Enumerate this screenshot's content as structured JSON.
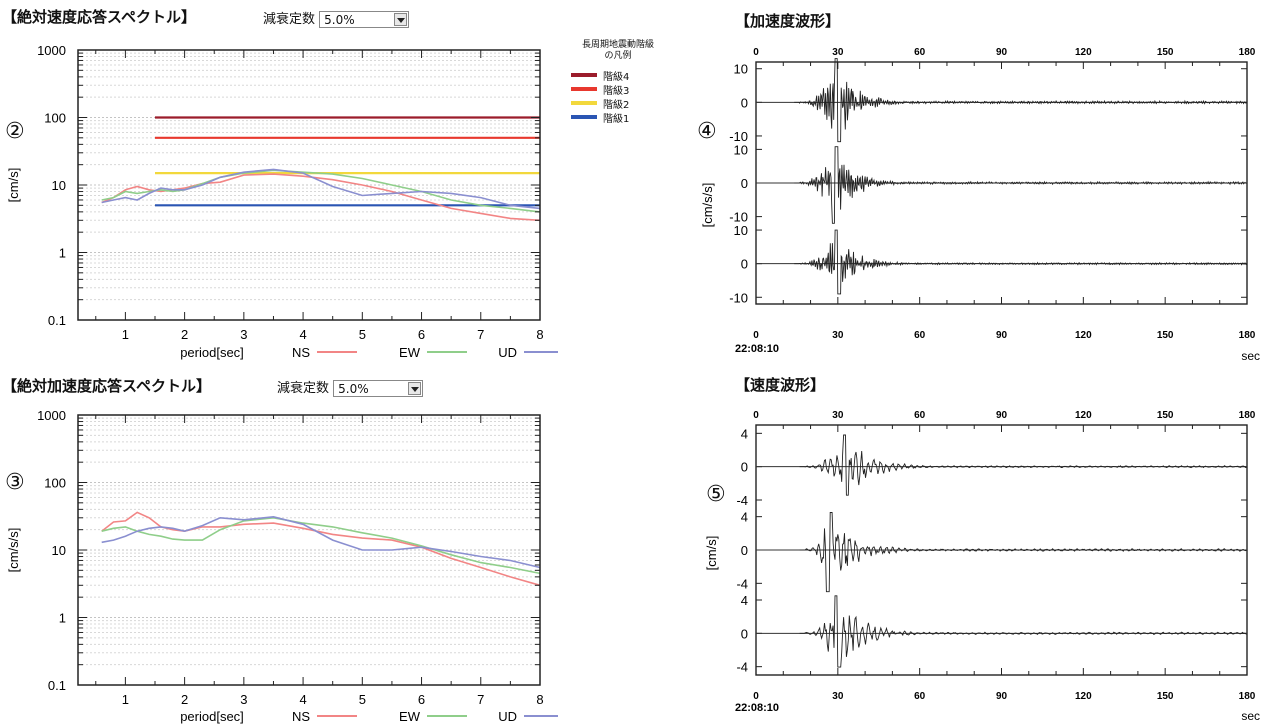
{
  "panels": {
    "vel_spec": {
      "title": "【絶対速度応答スペクトル】",
      "damping_label": "減衰定数",
      "damping_value": "5.0%",
      "marker": "②",
      "ylabel": "[cm/s]",
      "xlabel": "period[sec]"
    },
    "acc_spec": {
      "title": "【絶対加速度応答スペクトル】",
      "damping_label": "減衰定数",
      "damping_value": "5.0%",
      "marker": "③",
      "ylabel": "[cm/s/s]",
      "xlabel": "period[sec]"
    },
    "acc_wave": {
      "title": "【加速度波形】",
      "marker": "④",
      "ylabel": "[cm/s/s]",
      "time_label": "22:08:10",
      "unit": "sec"
    },
    "vel_wave": {
      "title": "【速度波形】",
      "marker": "⑤",
      "ylabel": "[cm/s]",
      "time_label": "22:08:10",
      "unit": "sec"
    }
  },
  "legend": {
    "title_line1": "長周期地震動階級",
    "title_line2": "の凡例",
    "items": [
      {
        "label": "階級4",
        "color": "#9b1c2b"
      },
      {
        "label": "階級3",
        "color": "#e8382e"
      },
      {
        "label": "階級2",
        "color": "#f2d83c"
      },
      {
        "label": "階級1",
        "color": "#2a55b3"
      }
    ]
  },
  "series_legend": [
    {
      "label": "NS",
      "color": "#f28585"
    },
    {
      "label": "EW",
      "color": "#8fce8a"
    },
    {
      "label": "UD",
      "color": "#8a8fd0"
    }
  ],
  "chart_data": [
    {
      "id": "vel_spec",
      "type": "line",
      "yscale": "log",
      "xlim": [
        0.2,
        8
      ],
      "ylim": [
        0.1,
        1000
      ],
      "xticks": [
        "1",
        "2",
        "3",
        "4",
        "5",
        "6",
        "7",
        "8"
      ],
      "yticks": [
        "0.1",
        "1",
        "10",
        "100",
        "1000"
      ],
      "thresholds": [
        {
          "value": 100,
          "color": "#9b1c2b",
          "x": [
            1.5,
            8
          ]
        },
        {
          "value": 50,
          "color": "#e8382e",
          "x": [
            1.5,
            8
          ]
        },
        {
          "value": 15,
          "color": "#f2d83c",
          "x": [
            1.5,
            8
          ]
        },
        {
          "value": 5,
          "color": "#2a55b3",
          "x": [
            1.5,
            8
          ]
        }
      ],
      "series": [
        {
          "name": "NS",
          "color": "#f28585",
          "x": [
            0.6,
            0.8,
            1.0,
            1.2,
            1.4,
            1.6,
            1.8,
            2.0,
            2.3,
            2.6,
            3.0,
            3.5,
            4.0,
            4.5,
            5.0,
            5.5,
            6.0,
            6.5,
            7.0,
            7.5,
            8.0
          ],
          "y": [
            5.5,
            6.5,
            8.5,
            9.5,
            8.5,
            8.0,
            8.5,
            9.0,
            10.5,
            11.0,
            14.0,
            14.5,
            13.5,
            12.0,
            10.0,
            8.0,
            6.0,
            4.5,
            3.8,
            3.2,
            3.0
          ]
        },
        {
          "name": "EW",
          "color": "#8fce8a",
          "x": [
            0.6,
            0.8,
            1.0,
            1.2,
            1.4,
            1.6,
            1.8,
            2.0,
            2.3,
            2.6,
            3.0,
            3.5,
            4.0,
            4.5,
            5.0,
            5.5,
            6.0,
            6.5,
            7.0,
            7.5,
            8.0
          ],
          "y": [
            6.0,
            6.5,
            8.0,
            7.5,
            8.0,
            8.5,
            8.0,
            8.5,
            10.5,
            13.0,
            15.0,
            16.5,
            15.5,
            14.5,
            12.5,
            10.0,
            8.0,
            6.0,
            5.0,
            4.5,
            4.0
          ]
        },
        {
          "name": "UD",
          "color": "#8a8fd0",
          "x": [
            0.6,
            0.8,
            1.0,
            1.2,
            1.4,
            1.6,
            1.8,
            2.0,
            2.3,
            2.6,
            3.0,
            3.5,
            4.0,
            4.5,
            5.0,
            5.5,
            6.0,
            6.5,
            7.0,
            7.5,
            8.0
          ],
          "y": [
            5.5,
            6.0,
            6.5,
            6.0,
            7.5,
            9.0,
            8.5,
            8.5,
            10.0,
            13.0,
            15.5,
            17.0,
            15.0,
            9.5,
            7.0,
            7.5,
            8.0,
            7.5,
            6.5,
            5.0,
            4.5
          ]
        }
      ]
    },
    {
      "id": "acc_spec",
      "type": "line",
      "yscale": "log",
      "xlim": [
        0.2,
        8
      ],
      "ylim": [
        0.1,
        1000
      ],
      "xticks": [
        "1",
        "2",
        "3",
        "4",
        "5",
        "6",
        "7",
        "8"
      ],
      "yticks": [
        "0.1",
        "1",
        "10",
        "100",
        "1000"
      ],
      "series": [
        {
          "name": "NS",
          "color": "#f28585",
          "x": [
            0.6,
            0.8,
            1.0,
            1.2,
            1.4,
            1.6,
            1.8,
            2.0,
            2.3,
            2.6,
            3.0,
            3.5,
            4.0,
            4.5,
            5.0,
            5.5,
            6.0,
            6.5,
            7.0,
            7.5,
            8.0
          ],
          "y": [
            19,
            26,
            27,
            36,
            30,
            22,
            20,
            19,
            22,
            22,
            24,
            25,
            21,
            17,
            15,
            14,
            11,
            7.5,
            5.5,
            4.0,
            3.0
          ]
        },
        {
          "name": "EW",
          "color": "#8fce8a",
          "x": [
            0.6,
            0.8,
            1.0,
            1.2,
            1.4,
            1.6,
            1.8,
            2.0,
            2.3,
            2.6,
            3.0,
            3.5,
            4.0,
            4.5,
            5.0,
            5.5,
            6.0,
            6.5,
            7.0,
            7.5,
            8.0
          ],
          "y": [
            19,
            21,
            22,
            19,
            17,
            16,
            14.5,
            14,
            14,
            20,
            27,
            30,
            25,
            22,
            18,
            15,
            11.5,
            8.5,
            6.5,
            5.5,
            4.5
          ]
        },
        {
          "name": "UD",
          "color": "#8a8fd0",
          "x": [
            0.6,
            0.8,
            1.0,
            1.2,
            1.4,
            1.6,
            1.8,
            2.0,
            2.3,
            2.6,
            3.0,
            3.5,
            4.0,
            4.5,
            5.0,
            5.5,
            6.0,
            6.5,
            7.0,
            7.5,
            8.0
          ],
          "y": [
            13,
            14,
            16,
            19,
            21,
            22,
            21,
            19,
            23,
            30,
            28,
            31,
            24,
            14,
            10,
            10,
            11,
            9.5,
            8,
            7,
            5.5
          ]
        }
      ]
    },
    {
      "id": "acc_wave",
      "type": "line",
      "xlim": [
        0,
        180
      ],
      "xticks": [
        "0",
        "30",
        "60",
        "90",
        "120",
        "150",
        "180"
      ],
      "channels": [
        {
          "yticks": [
            "10",
            "0",
            "-10"
          ],
          "ytick_values": [
            10,
            0,
            -10
          ],
          "ylim": [
            -12,
            12
          ],
          "onset": 16,
          "peak": 30,
          "amp": 13,
          "decay": 7
        },
        {
          "yticks": [
            "10",
            "0",
            "-10"
          ],
          "ytick_values": [
            10,
            0,
            -10
          ],
          "ylim": [
            -12,
            12
          ],
          "onset": 16,
          "peak": 29,
          "amp": 12,
          "decay": 7
        },
        {
          "yticks": [
            "10",
            "0",
            "-10"
          ],
          "ytick_values": [
            10,
            0,
            -10
          ],
          "ylim": [
            -12,
            12
          ],
          "onset": 16,
          "peak": 30,
          "amp": 10,
          "decay": 7
        }
      ]
    },
    {
      "id": "vel_wave",
      "type": "line",
      "xlim": [
        0,
        180
      ],
      "xticks": [
        "0",
        "30",
        "60",
        "90",
        "120",
        "150",
        "180"
      ],
      "channels": [
        {
          "yticks": [
            "4",
            "0",
            "-4"
          ],
          "ytick_values": [
            4,
            0,
            -4
          ],
          "ylim": [
            -5,
            5
          ],
          "onset": 18,
          "peak": 33,
          "amp": 3.8,
          "decay": 9
        },
        {
          "yticks": [
            "4",
            "0",
            "-4"
          ],
          "ytick_values": [
            4,
            0,
            -4
          ],
          "ylim": [
            -5,
            5
          ],
          "onset": 18,
          "peak": 27,
          "amp": 5.0,
          "decay": 9
        },
        {
          "yticks": [
            "4",
            "0",
            "-4"
          ],
          "ytick_values": [
            4,
            0,
            -4
          ],
          "ylim": [
            -5,
            5
          ],
          "onset": 18,
          "peak": 30,
          "amp": 4.5,
          "decay": 9
        }
      ]
    }
  ]
}
